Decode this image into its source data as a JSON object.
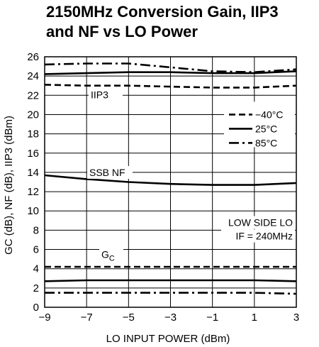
{
  "chart_data": {
    "type": "line",
    "title_line1": "2150MHz Conversion Gain, IIP3",
    "title_line2": "and NF vs LO Power",
    "xlabel": "LO INPUT POWER (dBm)",
    "ylabel": "GC (dB), NF (dB), IIP3 (dBm)",
    "xlim": [
      -9,
      3
    ],
    "ylim": [
      0,
      26
    ],
    "xticks": [
      -9,
      -7,
      -5,
      -3,
      -1,
      1,
      3
    ],
    "yticks": [
      0,
      2,
      4,
      6,
      8,
      10,
      12,
      14,
      16,
      18,
      20,
      22,
      24,
      26
    ],
    "grid": true,
    "legend": {
      "placement": "middle-right",
      "entries": [
        {
          "label": "−40°C",
          "style": "dashed"
        },
        {
          "label": "25°C",
          "style": "solid"
        },
        {
          "label": "85°C",
          "style": "dash-dot"
        }
      ]
    },
    "annotations": {
      "iip3": "IIP3",
      "ssbnf": "SSB NF",
      "gc": "GC",
      "lowside": "LOW SIDE LO",
      "if": "IF = 240MHz"
    },
    "series": [
      {
        "group": "IIP3",
        "temperature": "−40°C",
        "style": "dashed",
        "x": [
          -9,
          -7,
          -5,
          -3,
          -1,
          1,
          3
        ],
        "y": [
          23.1,
          23.0,
          23.0,
          22.9,
          22.8,
          22.8,
          23.0
        ]
      },
      {
        "group": "IIP3",
        "temperature": "25°C",
        "style": "solid",
        "x": [
          -9,
          -7,
          -5,
          -3,
          -1,
          1,
          3
        ],
        "y": [
          24.2,
          24.3,
          24.4,
          24.4,
          24.3,
          24.3,
          24.5
        ]
      },
      {
        "group": "IIP3",
        "temperature": "85°C",
        "style": "dash-dot",
        "x": [
          -9,
          -7,
          -5,
          -3,
          -1,
          1,
          3
        ],
        "y": [
          25.2,
          25.3,
          25.3,
          24.9,
          24.5,
          24.4,
          24.7
        ]
      },
      {
        "group": "SSB NF",
        "temperature": "25°C",
        "style": "solid",
        "x": [
          -9,
          -7,
          -5,
          -3,
          -1,
          1,
          3
        ],
        "y": [
          13.7,
          13.3,
          13.0,
          12.8,
          12.7,
          12.7,
          12.9
        ]
      },
      {
        "group": "GC",
        "temperature": "−40°C",
        "style": "dashed",
        "x": [
          -9,
          -7,
          -5,
          -3,
          -1,
          1,
          3
        ],
        "y": [
          4.2,
          4.2,
          4.2,
          4.2,
          4.2,
          4.2,
          4.2
        ]
      },
      {
        "group": "GC",
        "temperature": "25°C",
        "style": "solid",
        "x": [
          -9,
          -7,
          -5,
          -3,
          -1,
          1,
          3
        ],
        "y": [
          2.7,
          2.8,
          2.8,
          2.8,
          2.8,
          2.8,
          2.7
        ]
      },
      {
        "group": "GC",
        "temperature": "85°C",
        "style": "dash-dot",
        "x": [
          -9,
          -7,
          -5,
          -3,
          -1,
          1,
          3
        ],
        "y": [
          1.5,
          1.5,
          1.5,
          1.5,
          1.5,
          1.5,
          1.4
        ]
      }
    ]
  }
}
